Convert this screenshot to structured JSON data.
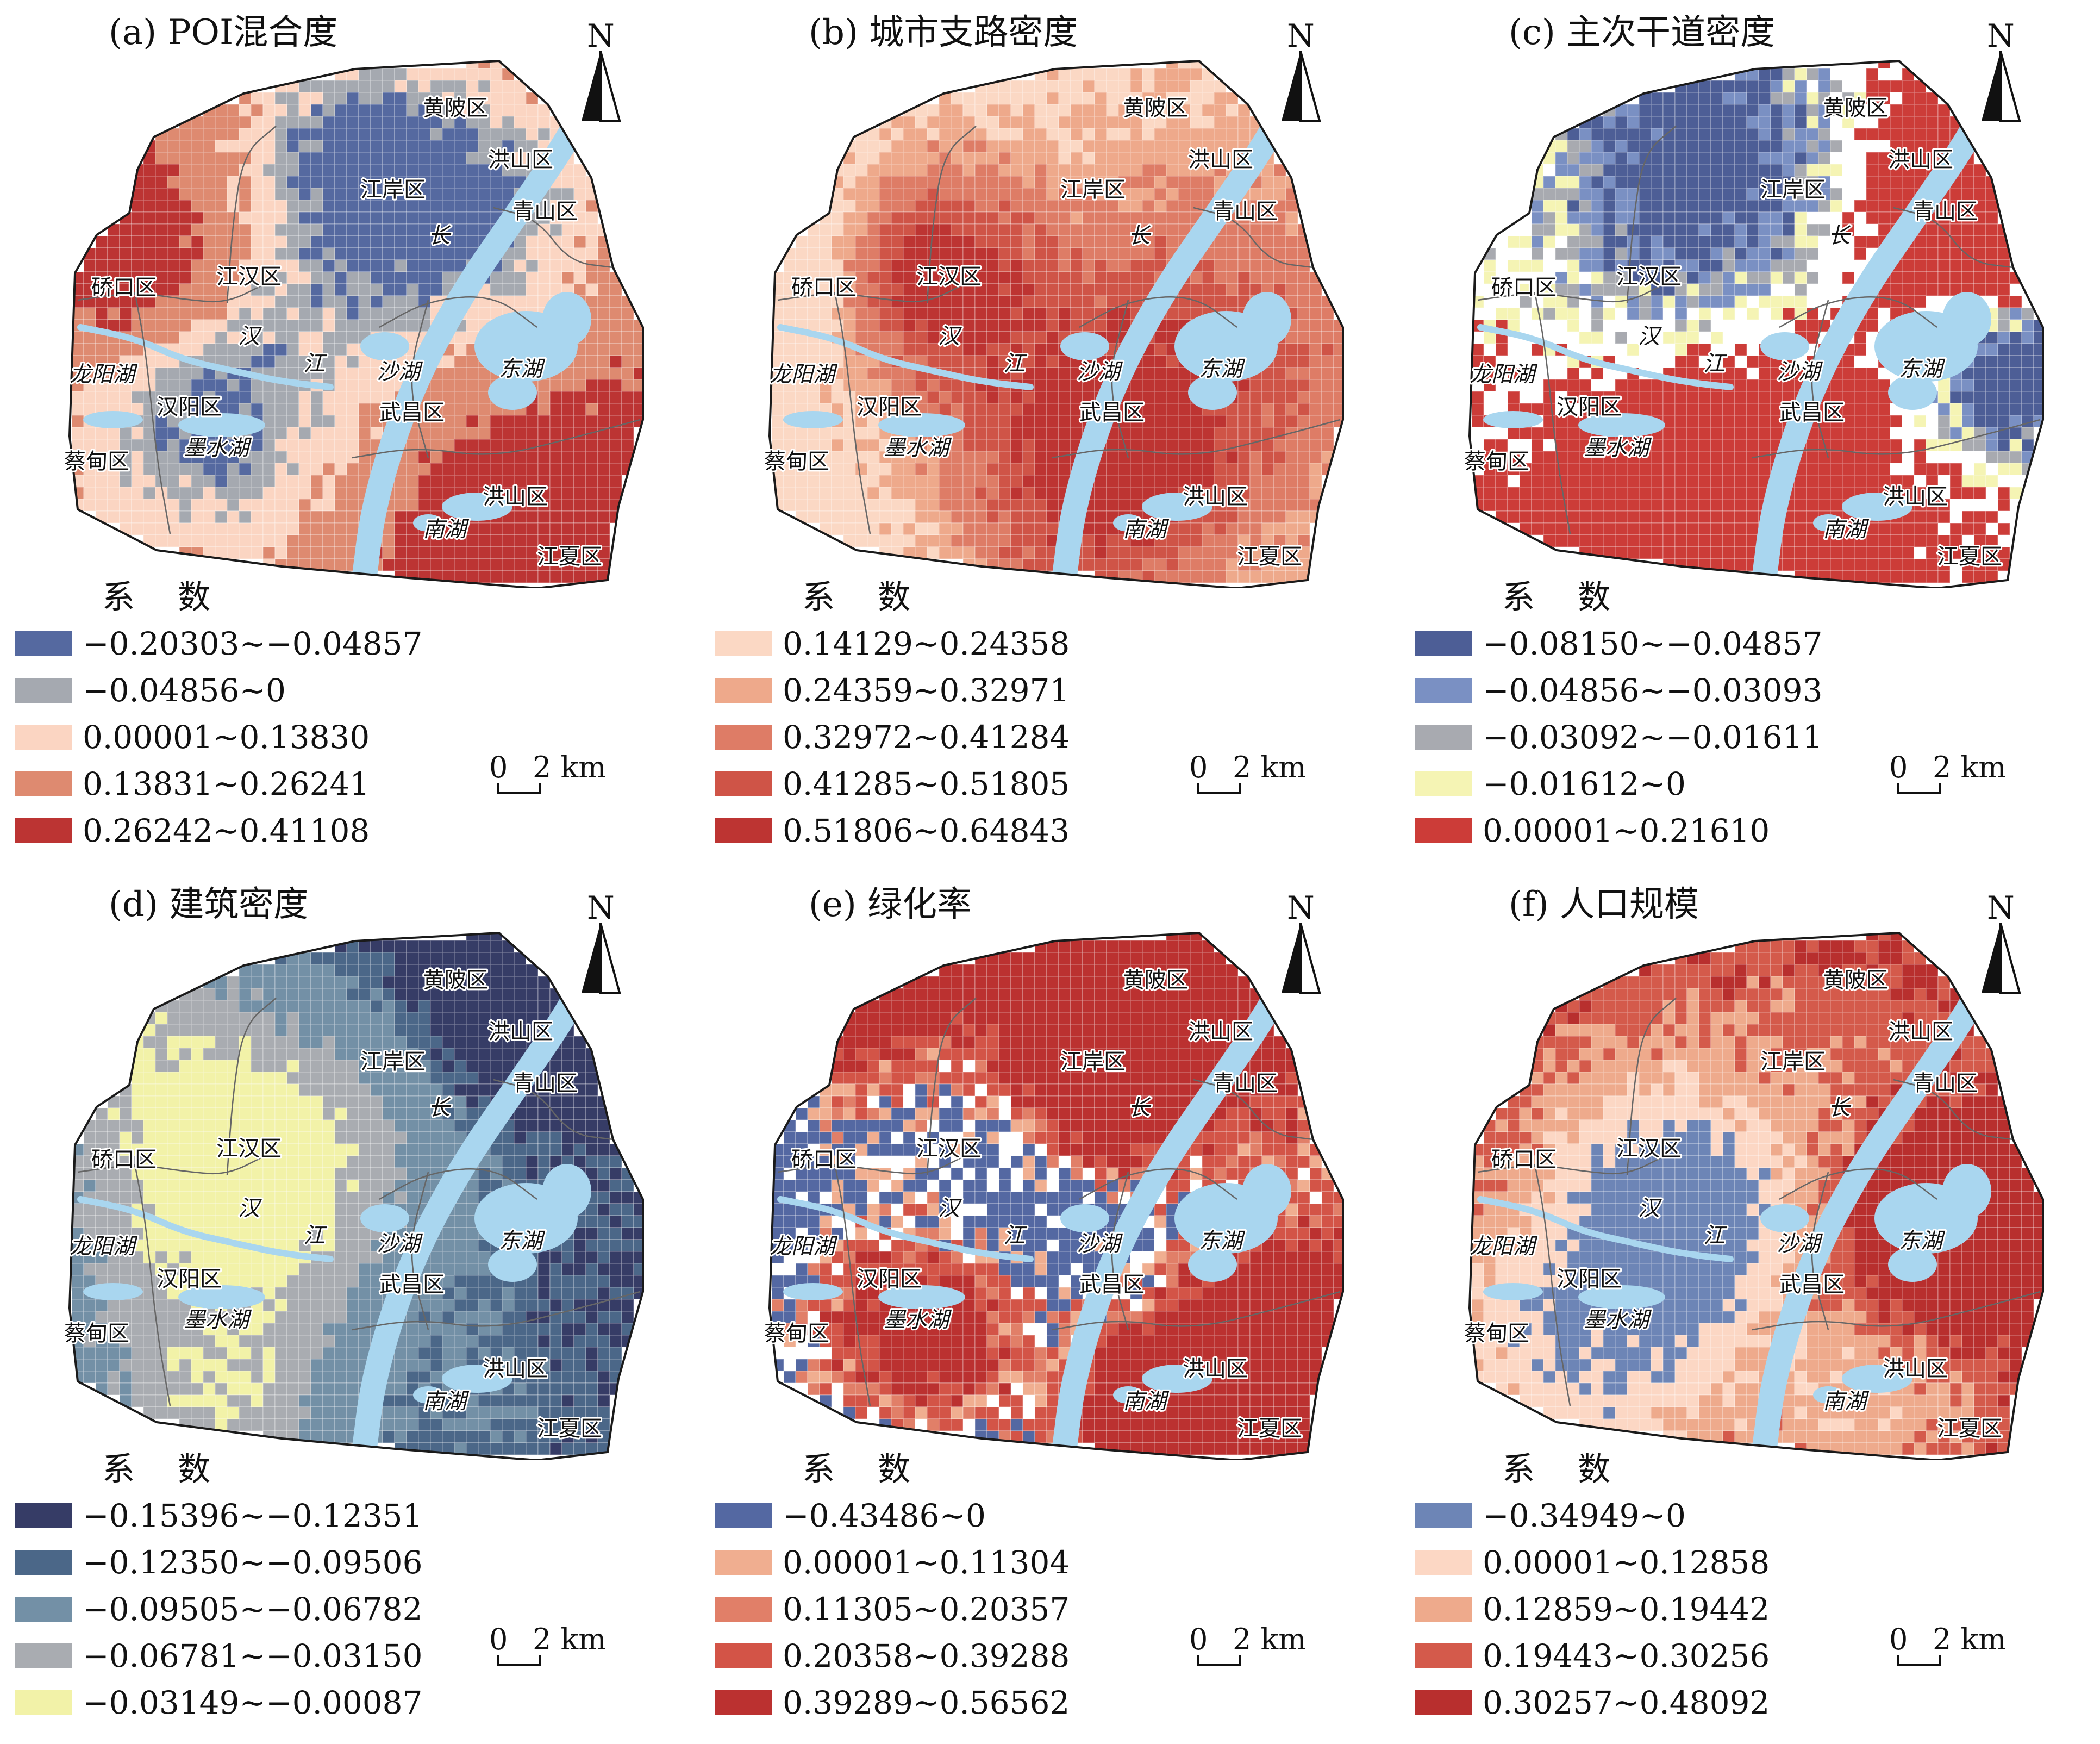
{
  "north_label": "N",
  "scale": {
    "zero": "0",
    "text": "2 km"
  },
  "legend_title": "系 数",
  "colors": {
    "water": "#a9d6ef",
    "boundary": "#1a1a1a",
    "inner_line": "#666666",
    "empty": "#ffffff"
  },
  "places": {
    "huangpi": "黄陂区",
    "hongshan_n": "洪山区",
    "jiangan": "江岸区",
    "qingshan": "青山区",
    "chang": "长",
    "qiaokou": "硚口区",
    "jianghan": "江汉区",
    "han": "汉",
    "jiang": "江",
    "longyanghu": "龙阳湖",
    "shahu": "沙湖",
    "donghu": "东湖",
    "hanyang": "汉阳区",
    "wuchang": "武昌区",
    "caidian": "蔡甸区",
    "moshuihu": "墨水湖",
    "hongshan": "洪山区",
    "nanhu": "南湖",
    "jiangxia": "江夏区"
  },
  "panels": [
    {
      "id": "a",
      "title": "(a) POI混合度",
      "classes": [
        {
          "label": "−0.20303~−0.04857",
          "color": "#5569a0"
        },
        {
          "label": "−0.04856~0",
          "color": "#a5a9b0"
        },
        {
          "label": "0.00001~0.13830",
          "color": "#fbd5c2"
        },
        {
          "label": "0.13831~0.26241",
          "color": "#de8a70"
        },
        {
          "label": "0.26242~0.41108",
          "color": "#bc3433"
        }
      ]
    },
    {
      "id": "b",
      "title": "(b) 城市支路密度",
      "classes": [
        {
          "label": "0.14129~0.24358",
          "color": "#fbd8c4"
        },
        {
          "label": "0.24359~0.32971",
          "color": "#eea98b"
        },
        {
          "label": "0.32972~0.41284",
          "color": "#de7c66"
        },
        {
          "label": "0.41285~0.51805",
          "color": "#cf5447"
        },
        {
          "label": "0.51806~0.64843",
          "color": "#bd3432"
        }
      ]
    },
    {
      "id": "c",
      "title": "(c) 主次干道密度",
      "classes": [
        {
          "label": "−0.08150~−0.04857",
          "color": "#4d5e96"
        },
        {
          "label": "−0.04856~−0.03093",
          "color": "#7a90c3"
        },
        {
          "label": "−0.03092~−0.01611",
          "color": "#a8aab0"
        },
        {
          "label": "−0.01612~0",
          "color": "#f5f4b4"
        },
        {
          "label": "0.00001~0.21610",
          "color": "#cc3c38"
        }
      ]
    },
    {
      "id": "d",
      "title": "(d) 建筑密度",
      "classes": [
        {
          "label": "−0.15396~−0.12351",
          "color": "#363c66"
        },
        {
          "label": "−0.12350~−0.09506",
          "color": "#4b6788"
        },
        {
          "label": "−0.09505~−0.06782",
          "color": "#7390a6"
        },
        {
          "label": "−0.06781~−0.03150",
          "color": "#a9acb1"
        },
        {
          "label": "−0.03149~−0.00087",
          "color": "#f2f2a8"
        }
      ]
    },
    {
      "id": "e",
      "title": "(e) 绿化率",
      "classes": [
        {
          "label": "−0.43486~0",
          "color": "#5468a2"
        },
        {
          "label": "0.00001~0.11304",
          "color": "#f0ae90"
        },
        {
          "label": "0.11305~0.20357",
          "color": "#e17f68"
        },
        {
          "label": "0.20358~0.39288",
          "color": "#d35447"
        },
        {
          "label": "0.39289~0.56562",
          "color": "#bb3130"
        }
      ]
    },
    {
      "id": "f",
      "title": "(f) 人口规模",
      "classes": [
        {
          "label": "−0.34949~0",
          "color": "#6d85b6"
        },
        {
          "label": "0.00001~0.12858",
          "color": "#fcd7c4"
        },
        {
          "label": "0.12859~0.19442",
          "color": "#eeaa8c"
        },
        {
          "label": "0.19443~0.30256",
          "color": "#d45a4b"
        },
        {
          "label": "0.30257~0.48092",
          "color": "#b82f2e"
        }
      ]
    }
  ]
}
